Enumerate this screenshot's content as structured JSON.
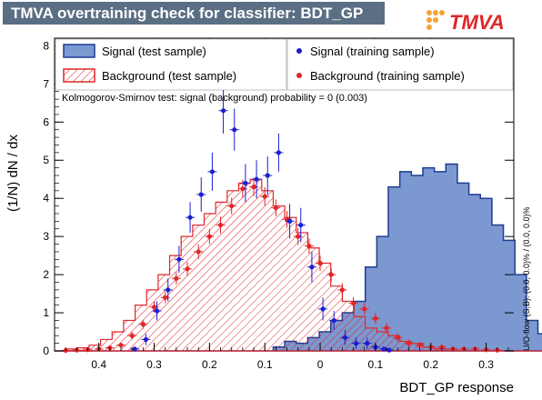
{
  "header": {
    "title": "TMVA overtraining check for classifier: BDT_GP",
    "logo_text": "TMVA"
  },
  "chart_data": {
    "type": "histogram",
    "x_axis_reversed": true,
    "xlabel": "BDT_GP response",
    "ylabel": "(1/N) dN / dx",
    "xlim": [
      -0.35,
      0.48
    ],
    "ylim": [
      0,
      8.2
    ],
    "x_ticks": [
      {
        "v": 0.4,
        "label": "0.4"
      },
      {
        "v": 0.3,
        "label": "0.3"
      },
      {
        "v": 0.2,
        "label": "0.2"
      },
      {
        "v": 0.1,
        "label": "0.1"
      },
      {
        "v": 0.0,
        "label": "0"
      },
      {
        "v": -0.1,
        "label": "0.1"
      },
      {
        "v": -0.2,
        "label": "0.2"
      },
      {
        "v": -0.3,
        "label": "0.3"
      }
    ],
    "y_ticks": [
      0,
      1,
      2,
      3,
      4,
      5,
      6,
      7,
      8
    ],
    "bin_width": 0.0208,
    "bins_start": 0.48,
    "signal_test": [
      0,
      0,
      0,
      0,
      0,
      0,
      0,
      0,
      0,
      0,
      0,
      0,
      0,
      0,
      0,
      0,
      0,
      0,
      0,
      0.1,
      0.25,
      0.2,
      0.35,
      0.5,
      0.8,
      1.0,
      1.3,
      2.2,
      3.0,
      4.3,
      4.7,
      4.6,
      4.8,
      4.7,
      4.9,
      4.4,
      4.1,
      4.0,
      3.3,
      2.9,
      2.0,
      0.8,
      0.45,
      0.2,
      0.15,
      0.05
    ],
    "background_test": [
      0,
      0.05,
      0.08,
      0.15,
      0.3,
      0.5,
      0.8,
      1.2,
      1.6,
      2.0,
      2.5,
      3.0,
      3.3,
      3.6,
      3.9,
      4.2,
      4.4,
      4.5,
      4.2,
      3.8,
      3.5,
      3.1,
      2.7,
      2.3,
      1.7,
      1.3,
      0.9,
      0.6,
      0.5,
      0.4,
      0.25,
      0.2,
      0.1,
      0.05,
      0.05,
      0,
      0,
      0,
      0,
      0,
      0,
      0,
      0,
      0,
      0,
      0
    ],
    "signal_train": {
      "x": [
        -0.125,
        -0.115,
        -0.1,
        -0.085,
        -0.065,
        -0.045,
        -0.025,
        -0.005,
        0.015,
        0.035,
        0.055,
        0.075,
        0.095,
        0.115,
        0.135,
        0.155,
        0.175,
        0.195,
        0.215,
        0.235,
        0.255,
        0.275,
        0.295,
        0.315,
        0.335
      ],
      "y": [
        0.02,
        0.05,
        0.1,
        0.2,
        0.2,
        0.35,
        0.8,
        1.1,
        2.2,
        3.3,
        3.4,
        5.2,
        4.6,
        4.5,
        4.4,
        5.8,
        6.3,
        4.7,
        4.1,
        3.5,
        2.4,
        1.6,
        1.05,
        0.3,
        0.05
      ],
      "err": [
        0.05,
        0.05,
        0.1,
        0.15,
        0.15,
        0.2,
        0.25,
        0.3,
        0.4,
        0.45,
        0.45,
        0.5,
        0.5,
        0.5,
        0.5,
        0.55,
        0.6,
        0.5,
        0.45,
        0.4,
        0.35,
        0.3,
        0.25,
        0.15,
        0.05
      ]
    },
    "background_train": {
      "x": [
        -0.32,
        -0.3,
        -0.28,
        -0.26,
        -0.24,
        -0.22,
        -0.2,
        -0.18,
        -0.16,
        -0.14,
        -0.12,
        -0.1,
        -0.08,
        -0.06,
        -0.04,
        -0.02,
        0.0,
        0.02,
        0.04,
        0.06,
        0.08,
        0.1,
        0.12,
        0.14,
        0.16,
        0.18,
        0.2,
        0.22,
        0.24,
        0.26,
        0.28,
        0.3,
        0.32,
        0.34,
        0.36,
        0.38,
        0.4,
        0.42,
        0.44,
        0.46
      ],
      "y": [
        0.02,
        0.03,
        0.05,
        0.05,
        0.05,
        0.1,
        0.1,
        0.15,
        0.2,
        0.35,
        0.6,
        0.85,
        1.1,
        1.25,
        1.6,
        2.0,
        2.3,
        2.75,
        3.0,
        3.45,
        3.75,
        4.05,
        4.3,
        4.25,
        3.8,
        3.3,
        3.0,
        2.6,
        2.15,
        1.9,
        1.4,
        1.15,
        0.7,
        0.4,
        0.15,
        0.08,
        0.05,
        0.03,
        0.02,
        0.01
      ],
      "err": [
        0.02,
        0.03,
        0.04,
        0.04,
        0.05,
        0.06,
        0.07,
        0.08,
        0.1,
        0.12,
        0.14,
        0.15,
        0.15,
        0.16,
        0.18,
        0.18,
        0.2,
        0.2,
        0.22,
        0.22,
        0.22,
        0.24,
        0.24,
        0.24,
        0.22,
        0.22,
        0.2,
        0.2,
        0.18,
        0.16,
        0.15,
        0.14,
        0.12,
        0.1,
        0.06,
        0.05,
        0.04,
        0.03,
        0.02,
        0.01
      ]
    },
    "legend": {
      "signal_test": "Signal (test sample)",
      "background_test": "Background (test sample)",
      "signal_train": "Signal (training sample)",
      "background_train": "Background (training sample)"
    },
    "ks_text": "Kolmogorov-Smirnov test: signal (background) probability =     0 (0.003)",
    "overflow_note": "U/O-flow (S,B): (0.0, 0.0)% / (0.0, 0.0)%",
    "colors": {
      "signal_fill": "#7b98d1",
      "signal_line": "#1f3c8f",
      "background_line": "#e0262a",
      "signal_marker": "#1a1fd0",
      "background_marker": "#e0262a",
      "title_bg": "#5b6f84"
    }
  }
}
